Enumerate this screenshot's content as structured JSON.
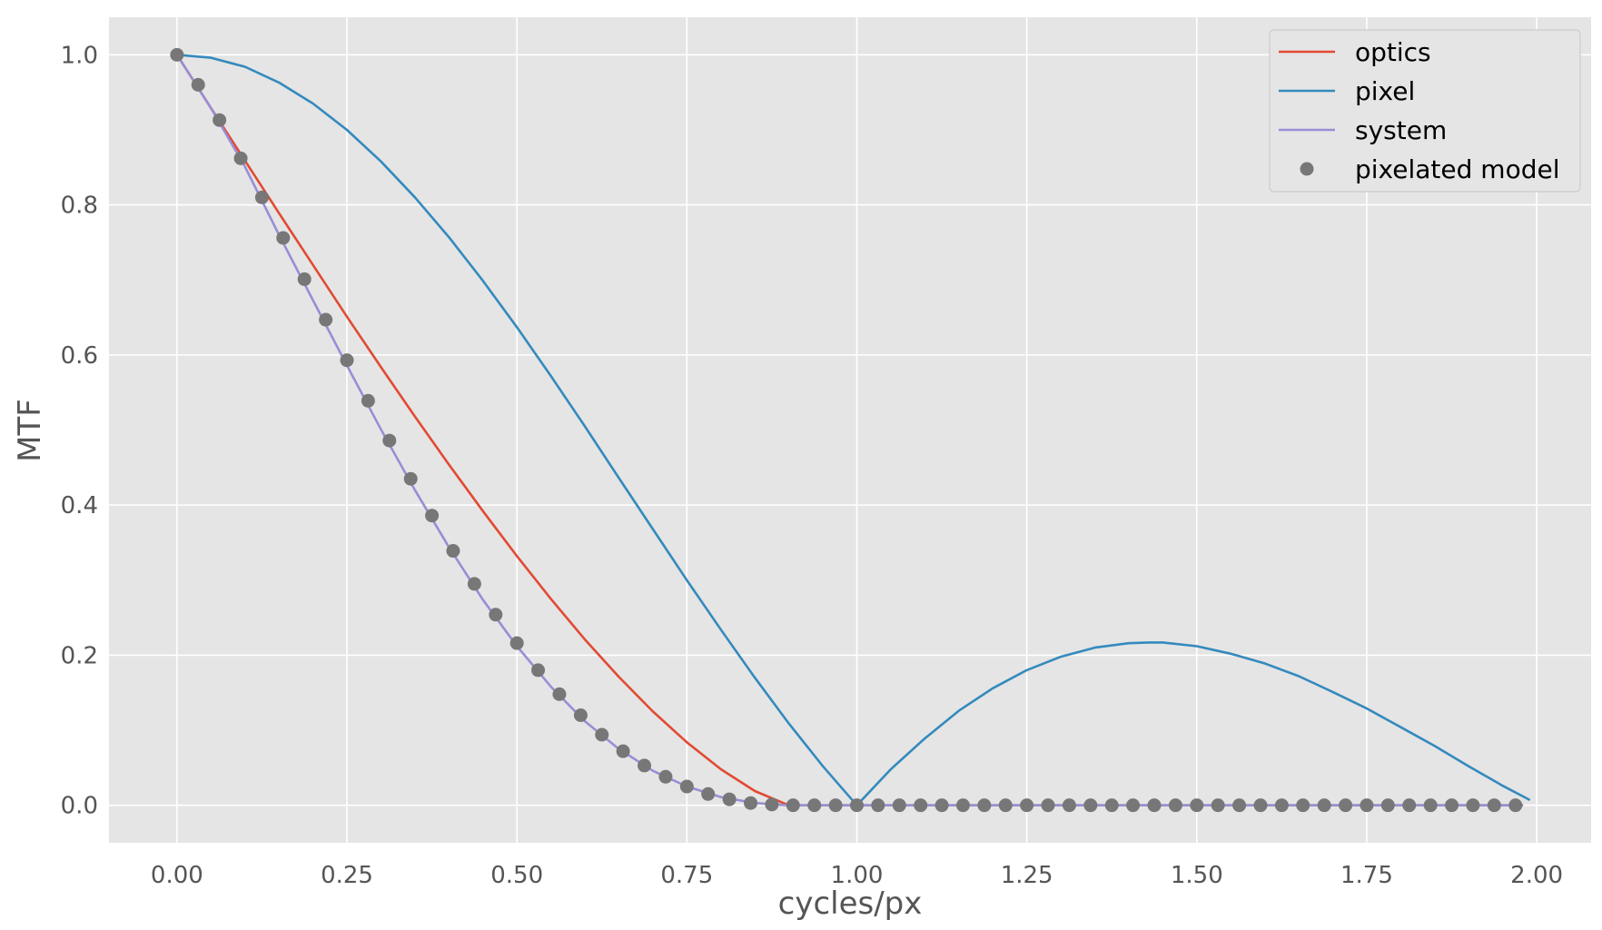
{
  "chart_data": {
    "type": "line",
    "title": "",
    "xlabel": "cycles/px",
    "ylabel": "MTF",
    "xlim": [
      -0.1,
      2.08
    ],
    "ylim": [
      -0.05,
      1.05
    ],
    "x_ticks": [
      "0.00",
      "0.25",
      "0.50",
      "0.75",
      "1.00",
      "1.25",
      "1.50",
      "1.75",
      "2.00"
    ],
    "y_ticks": [
      "0.0",
      "0.2",
      "0.4",
      "0.6",
      "0.8",
      "1.0"
    ],
    "grid": true,
    "background": "#e5e5e5",
    "legend_position": "top-right",
    "series": [
      {
        "name": "optics",
        "style": "line",
        "color": "#e24a33",
        "x": [
          0.0,
          0.05,
          0.1,
          0.15,
          0.2,
          0.25,
          0.3,
          0.35,
          0.4,
          0.45,
          0.5,
          0.55,
          0.6,
          0.65,
          0.7,
          0.75,
          0.8,
          0.85,
          0.9,
          1.0,
          1.25,
          1.5,
          1.75,
          1.98
        ],
        "y": [
          1.0,
          0.929,
          0.859,
          0.789,
          0.72,
          0.651,
          0.584,
          0.518,
          0.454,
          0.392,
          0.332,
          0.275,
          0.221,
          0.171,
          0.125,
          0.084,
          0.048,
          0.019,
          0.0,
          0.0,
          0.0,
          0.0,
          0.0,
          0.0
        ]
      },
      {
        "name": "pixel",
        "style": "line",
        "color": "#348abd",
        "x": [
          0.0,
          0.05,
          0.1,
          0.15,
          0.2,
          0.25,
          0.3,
          0.35,
          0.4,
          0.45,
          0.5,
          0.55,
          0.6,
          0.65,
          0.7,
          0.75,
          0.8,
          0.85,
          0.9,
          0.95,
          1.0,
          1.05,
          1.1,
          1.15,
          1.2,
          1.25,
          1.3,
          1.35,
          1.4,
          1.43,
          1.45,
          1.5,
          1.55,
          1.6,
          1.65,
          1.7,
          1.75,
          1.8,
          1.85,
          1.9,
          1.95,
          1.99
        ],
        "y": [
          1.0,
          0.996,
          0.984,
          0.963,
          0.935,
          0.9,
          0.858,
          0.81,
          0.757,
          0.699,
          0.637,
          0.572,
          0.505,
          0.436,
          0.368,
          0.3,
          0.234,
          0.17,
          0.109,
          0.052,
          0.0,
          0.048,
          0.089,
          0.126,
          0.156,
          0.18,
          0.198,
          0.21,
          0.216,
          0.217,
          0.217,
          0.212,
          0.202,
          0.189,
          0.172,
          0.151,
          0.129,
          0.104,
          0.079,
          0.052,
          0.026,
          0.007
        ]
      },
      {
        "name": "system",
        "style": "line",
        "color": "#988ed5",
        "x": [
          0.0,
          0.05,
          0.1,
          0.15,
          0.2,
          0.25,
          0.3,
          0.35,
          0.4,
          0.45,
          0.5,
          0.55,
          0.6,
          0.65,
          0.7,
          0.75,
          0.8,
          0.85,
          0.9,
          1.0,
          1.25,
          1.5,
          1.75,
          1.98
        ],
        "y": [
          1.0,
          0.929,
          0.851,
          0.76,
          0.673,
          0.586,
          0.501,
          0.42,
          0.344,
          0.274,
          0.212,
          0.158,
          0.112,
          0.075,
          0.046,
          0.025,
          0.011,
          0.003,
          0.0,
          0.0,
          0.0,
          0.0,
          0.0,
          0.0
        ]
      },
      {
        "name": "pixelated model",
        "style": "markers",
        "color": "#777777",
        "x": [
          0.0,
          0.0312,
          0.0625,
          0.0938,
          0.125,
          0.1562,
          0.1875,
          0.2188,
          0.25,
          0.2812,
          0.3125,
          0.3438,
          0.375,
          0.4062,
          0.4375,
          0.4688,
          0.5,
          0.5312,
          0.5625,
          0.5938,
          0.625,
          0.6562,
          0.6875,
          0.7188,
          0.75,
          0.7812,
          0.8125,
          0.8438,
          0.875,
          0.9062,
          0.9375,
          0.9688,
          1.0,
          1.0312,
          1.0625,
          1.0938,
          1.125,
          1.1562,
          1.1875,
          1.2188,
          1.25,
          1.2812,
          1.3125,
          1.3438,
          1.375,
          1.4062,
          1.4375,
          1.4688,
          1.5,
          1.5312,
          1.5625,
          1.5938,
          1.625,
          1.6562,
          1.6875,
          1.7188,
          1.75,
          1.7812,
          1.8125,
          1.8438,
          1.875,
          1.9062,
          1.9375,
          1.9688
        ],
        "y": [
          1.0,
          0.96,
          0.913,
          0.862,
          0.81,
          0.756,
          0.701,
          0.647,
          0.593,
          0.539,
          0.486,
          0.435,
          0.386,
          0.339,
          0.295,
          0.254,
          0.216,
          0.18,
          0.148,
          0.12,
          0.094,
          0.072,
          0.053,
          0.038,
          0.025,
          0.015,
          0.008,
          0.003,
          0.001,
          0.0,
          0.0,
          0.0,
          0.0,
          0.0,
          0.0,
          0.0,
          0.0,
          0.0,
          0.0,
          0.0,
          0.0,
          0.0,
          0.0,
          0.0,
          0.0,
          0.0,
          0.0,
          0.0,
          0.0,
          0.0,
          0.0,
          0.0,
          0.0,
          0.0,
          0.0,
          0.0,
          0.0,
          0.0,
          0.0,
          0.0,
          0.0,
          0.0,
          0.0,
          0.0
        ]
      }
    ]
  }
}
